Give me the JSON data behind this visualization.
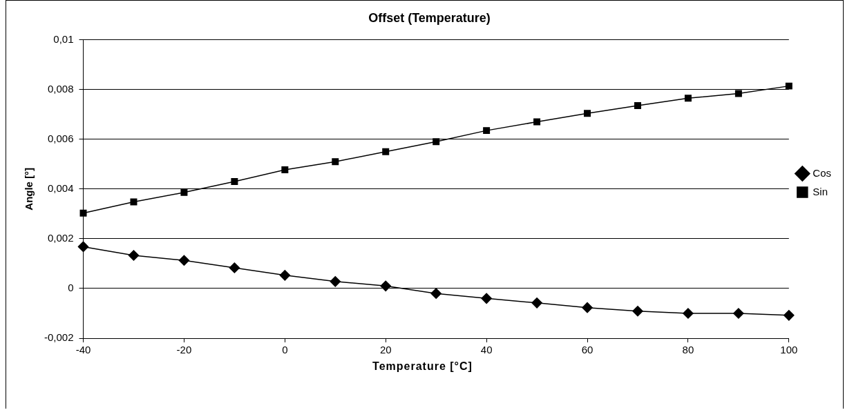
{
  "chart_data": {
    "type": "line",
    "title": "Offset (Temperature)",
    "xlabel": "Temperature [°C]",
    "ylabel": "Angle [°]",
    "x": [
      -40,
      -30,
      -20,
      -10,
      0,
      10,
      20,
      30,
      40,
      50,
      60,
      70,
      80,
      90,
      100
    ],
    "series": [
      {
        "name": "Cos",
        "color": "#000000",
        "marker": "diamond",
        "values": [
          0.00168,
          0.00133,
          0.00113,
          0.00083,
          0.00053,
          0.00028,
          0.0001,
          -0.0002,
          -0.0004,
          -0.00058,
          -0.00077,
          -0.00091,
          -0.001,
          -0.001,
          -0.00108
        ]
      },
      {
        "name": "Sin",
        "color": "#000000",
        "marker": "square",
        "values": [
          0.00303,
          0.00348,
          0.00386,
          0.0043,
          0.00477,
          0.0051,
          0.0055,
          0.0059,
          0.00635,
          0.0067,
          0.00704,
          0.00735,
          0.00765,
          0.00784,
          0.00814
        ]
      }
    ],
    "xlim": [
      -40,
      100
    ],
    "xticks": [
      -40,
      -20,
      0,
      20,
      40,
      60,
      80,
      100
    ],
    "ylim": [
      -0.002,
      0.01
    ],
    "yticks": [
      {
        "value": -0.002,
        "label": "-0,002"
      },
      {
        "value": 0,
        "label": "0"
      },
      {
        "value": 0.002,
        "label": "0,002"
      },
      {
        "value": 0.004,
        "label": "0,004"
      },
      {
        "value": 0.006,
        "label": "0,006"
      },
      {
        "value": 0.008,
        "label": "0,008"
      },
      {
        "value": 0.01,
        "label": "0,01"
      }
    ],
    "grid": "y",
    "legend": "right",
    "line_style": "solid"
  }
}
